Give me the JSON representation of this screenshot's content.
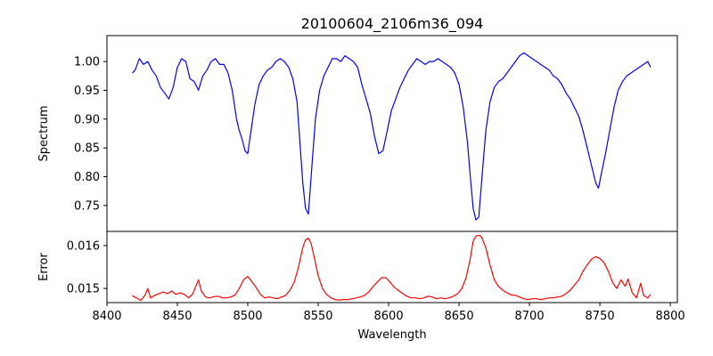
{
  "chart_data": [
    {
      "type": "line",
      "title": "20100604_2106m36_094",
      "xlabel": "",
      "ylabel": "Spectrum",
      "xlim": [
        8400,
        8805
      ],
      "ylim": [
        0.705,
        1.045
      ],
      "yticks": [
        0.75,
        0.8,
        0.85,
        0.9,
        0.95,
        1.0
      ],
      "ytick_labels": [
        "0.75",
        "0.80",
        "0.85",
        "0.90",
        "0.95",
        "1.00"
      ],
      "color": "#0000ff",
      "series": [
        {
          "name": "Spectrum",
          "x": [
            8418,
            8420,
            8423,
            8426,
            8429,
            8432,
            8435,
            8438,
            8441,
            8444,
            8447,
            8450,
            8453,
            8456,
            8459,
            8462,
            8465,
            8468,
            8471,
            8474,
            8477,
            8480,
            8483,
            8486,
            8489,
            8492,
            8494,
            8496,
            8498,
            8500,
            8502,
            8505,
            8508,
            8511,
            8514,
            8517,
            8520,
            8523,
            8526,
            8529,
            8532,
            8535,
            8537,
            8539,
            8541,
            8543,
            8545,
            8548,
            8551,
            8554,
            8557,
            8560,
            8563,
            8566,
            8569,
            8572,
            8575,
            8578,
            8581,
            8584,
            8587,
            8590,
            8593,
            8596,
            8599,
            8602,
            8605,
            8608,
            8611,
            8614,
            8617,
            8620,
            8623,
            8626,
            8629,
            8632,
            8635,
            8638,
            8641,
            8644,
            8647,
            8650,
            8653,
            8656,
            8658,
            8660,
            8662,
            8664,
            8666,
            8669,
            8672,
            8675,
            8678,
            8681,
            8684,
            8687,
            8690,
            8693,
            8696,
            8699,
            8702,
            8705,
            8708,
            8711,
            8714,
            8717,
            8720,
            8723,
            8726,
            8729,
            8732,
            8735,
            8738,
            8741,
            8744,
            8747,
            8749,
            8751,
            8754,
            8757,
            8760,
            8763,
            8766,
            8769,
            8772,
            8775,
            8778,
            8781,
            8784,
            8786
          ],
          "values": [
            0.98,
            0.985,
            1.005,
            0.995,
            1.0,
            0.985,
            0.975,
            0.955,
            0.945,
            0.935,
            0.955,
            0.99,
            1.005,
            1.0,
            0.97,
            0.965,
            0.95,
            0.975,
            0.985,
            1.0,
            1.005,
            0.995,
            0.995,
            0.98,
            0.95,
            0.9,
            0.88,
            0.865,
            0.845,
            0.84,
            0.875,
            0.925,
            0.96,
            0.975,
            0.985,
            0.99,
            1.0,
            1.005,
            1.0,
            0.99,
            0.97,
            0.93,
            0.86,
            0.79,
            0.745,
            0.735,
            0.8,
            0.9,
            0.95,
            0.975,
            0.99,
            1.005,
            1.005,
            1.0,
            1.01,
            1.005,
            1.0,
            0.99,
            0.96,
            0.935,
            0.91,
            0.87,
            0.84,
            0.845,
            0.88,
            0.915,
            0.935,
            0.955,
            0.97,
            0.985,
            0.995,
            1.005,
            1.0,
            0.995,
            1.0,
            1.0,
            1.005,
            1.0,
            0.995,
            0.99,
            0.98,
            0.96,
            0.92,
            0.86,
            0.8,
            0.745,
            0.725,
            0.73,
            0.79,
            0.88,
            0.93,
            0.955,
            0.965,
            0.97,
            0.98,
            0.99,
            1.0,
            1.01,
            1.015,
            1.01,
            1.005,
            1.0,
            0.995,
            0.99,
            0.985,
            0.975,
            0.97,
            0.96,
            0.945,
            0.935,
            0.92,
            0.905,
            0.88,
            0.85,
            0.82,
            0.79,
            0.78,
            0.805,
            0.84,
            0.88,
            0.92,
            0.95,
            0.965,
            0.975,
            0.98,
            0.985,
            0.99,
            0.995,
            1.0,
            0.99
          ]
        }
      ]
    },
    {
      "type": "line",
      "title": "",
      "xlabel": "Wavelength",
      "ylabel": "Error",
      "xlim": [
        8400,
        8805
      ],
      "ylim": [
        0.01467,
        0.01633
      ],
      "xticks": [
        8400,
        8450,
        8500,
        8550,
        8600,
        8650,
        8700,
        8750,
        8800
      ],
      "xtick_labels": [
        "8400",
        "8450",
        "8500",
        "8550",
        "8600",
        "8650",
        "8700",
        "8750",
        "8800"
      ],
      "yticks": [
        0.015,
        0.016
      ],
      "ytick_labels": [
        "0.015",
        "0.016"
      ],
      "color": "#ff0000",
      "series": [
        {
          "name": "Error",
          "x": [
            8418,
            8421,
            8424,
            8427,
            8429,
            8431,
            8434,
            8437,
            8440,
            8443,
            8446,
            8449,
            8452,
            8455,
            8458,
            8461,
            8464,
            8465,
            8467,
            8470,
            8473,
            8476,
            8479,
            8482,
            8485,
            8488,
            8491,
            8494,
            8497,
            8500,
            8503,
            8506,
            8509,
            8512,
            8515,
            8518,
            8521,
            8524,
            8527,
            8530,
            8533,
            8536,
            8539,
            8541,
            8543,
            8545,
            8547,
            8550,
            8553,
            8556,
            8559,
            8562,
            8565,
            8568,
            8571,
            8574,
            8577,
            8580,
            8583,
            8586,
            8589,
            8592,
            8595,
            8598,
            8601,
            8604,
            8607,
            8610,
            8613,
            8616,
            8619,
            8622,
            8625,
            8628,
            8631,
            8634,
            8637,
            8640,
            8643,
            8646,
            8649,
            8652,
            8655,
            8658,
            8660,
            8662,
            8664,
            8666,
            8669,
            8672,
            8675,
            8678,
            8681,
            8684,
            8687,
            8690,
            8693,
            8696,
            8699,
            8702,
            8705,
            8708,
            8711,
            8714,
            8717,
            8720,
            8723,
            8726,
            8729,
            8732,
            8735,
            8738,
            8741,
            8744,
            8747,
            8750,
            8753,
            8756,
            8759,
            8762,
            8765,
            8768,
            8770,
            8773,
            8776,
            8779,
            8781,
            8784,
            8786
          ],
          "values": [
            0.01483,
            0.01478,
            0.01472,
            0.01484,
            0.015,
            0.01478,
            0.01484,
            0.01488,
            0.01492,
            0.01488,
            0.01494,
            0.01486,
            0.0149,
            0.01486,
            0.01478,
            0.01488,
            0.01512,
            0.0152,
            0.01494,
            0.0148,
            0.01478,
            0.01481,
            0.01482,
            0.01478,
            0.01478,
            0.0148,
            0.01485,
            0.015,
            0.0152,
            0.01528,
            0.01515,
            0.01502,
            0.01486,
            0.01478,
            0.0148,
            0.01478,
            0.01476,
            0.0148,
            0.01484,
            0.01496,
            0.01515,
            0.0155,
            0.01595,
            0.01613,
            0.01617,
            0.01605,
            0.01575,
            0.0153,
            0.015,
            0.01486,
            0.01478,
            0.01474,
            0.01473,
            0.01474,
            0.01474,
            0.01476,
            0.01478,
            0.0148,
            0.01484,
            0.01492,
            0.01505,
            0.01515,
            0.01525,
            0.01525,
            0.01515,
            0.01503,
            0.01495,
            0.01488,
            0.01482,
            0.01478,
            0.01478,
            0.01476,
            0.01478,
            0.01482,
            0.0148,
            0.01476,
            0.01478,
            0.01476,
            0.01478,
            0.01482,
            0.01488,
            0.015,
            0.01525,
            0.0157,
            0.0161,
            0.01622,
            0.01624,
            0.0162,
            0.01595,
            0.01555,
            0.0152,
            0.01505,
            0.01496,
            0.0149,
            0.01485,
            0.01484,
            0.0148,
            0.01476,
            0.01474,
            0.01476,
            0.01476,
            0.01474,
            0.01476,
            0.01478,
            0.01478,
            0.0148,
            0.01482,
            0.01488,
            0.01496,
            0.01508,
            0.0152,
            0.0154,
            0.01555,
            0.01568,
            0.01574,
            0.0157,
            0.0156,
            0.0154,
            0.01514,
            0.015,
            0.0152,
            0.01505,
            0.01522,
            0.0149,
            0.01478,
            0.01512,
            0.01484,
            0.01478,
            0.01486
          ]
        }
      ]
    }
  ]
}
